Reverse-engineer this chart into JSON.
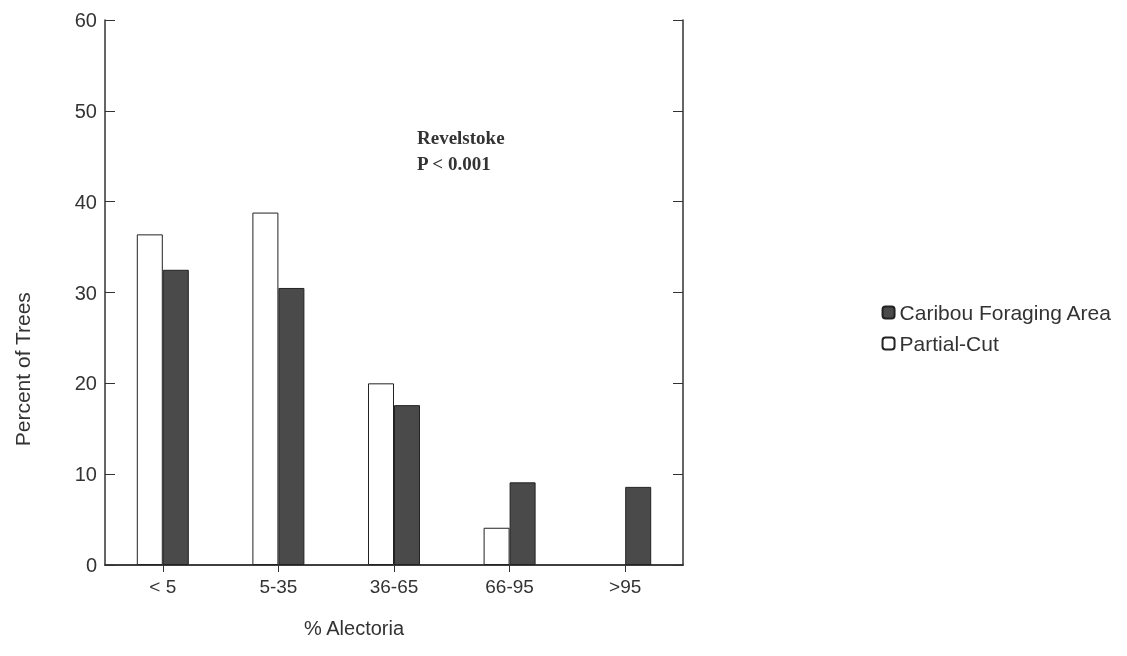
{
  "chart_data": {
    "type": "bar",
    "xlabel": "% Alectoria",
    "ylabel": "Percent of Trees",
    "categories": [
      "< 5",
      "5-35",
      "36-65",
      "66-95",
      ">95"
    ],
    "series": [
      {
        "name": "Partial-Cut",
        "color": "#ffffff",
        "values": [
          36.4,
          38.8,
          20,
          4.1,
          null
        ]
      },
      {
        "name": "Caribou Foraging Area",
        "color": "#4a4a4a",
        "values": [
          32.5,
          30.5,
          17.6,
          9.1,
          8.6
        ]
      }
    ],
    "ylim": [
      0,
      60
    ],
    "yticks": [
      0,
      10,
      20,
      30,
      40,
      50,
      60
    ],
    "grid": false,
    "legend": "right",
    "annotations": [
      "Revelstoke",
      "P < 0.001"
    ]
  }
}
